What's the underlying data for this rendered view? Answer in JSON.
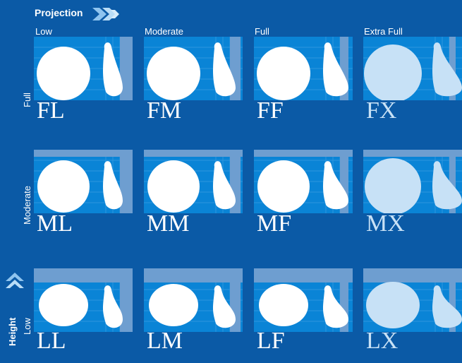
{
  "header": {
    "projection_label": "Projection"
  },
  "columns": [
    {
      "key": "low",
      "label": "Low"
    },
    {
      "key": "moderate",
      "label": "Moderate"
    },
    {
      "key": "full",
      "label": "Full"
    },
    {
      "key": "extra_full",
      "label": "Extra Full"
    }
  ],
  "rows": [
    {
      "key": "full",
      "label": "Full"
    },
    {
      "key": "moderate",
      "label": "Moderate"
    },
    {
      "key": "low",
      "label": "Low",
      "axis_label": "Height"
    }
  ],
  "codes": [
    [
      "FL",
      "FM",
      "FF",
      "FX"
    ],
    [
      "ML",
      "MM",
      "MF",
      "MX"
    ],
    [
      "LL",
      "LM",
      "LF",
      "LX"
    ]
  ],
  "icons": {
    "projection_arrow": "double-chevron-right-icon",
    "height_arrow": "double-chevron-up-icon"
  },
  "colors": {
    "background": "#0b5aa6",
    "panel": "#0a84d6",
    "frame": "#6e9ed0",
    "shape": "#ffffff",
    "shape_extra_full": "#c7e1f6",
    "chevron": "#8fc4ef"
  }
}
